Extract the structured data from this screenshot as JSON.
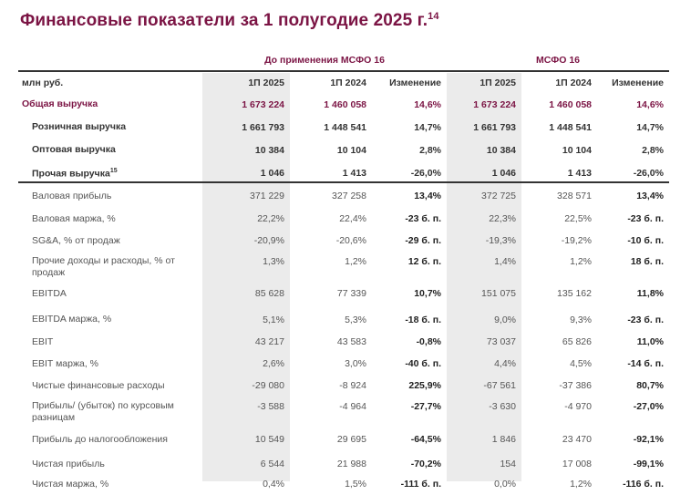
{
  "title": "Финансовые показатели за 1 полугодие 2025 г.",
  "title_footnote": "14",
  "groups": {
    "pre_ifrs16": "До применения МСФО 16",
    "ifrs16": "МСФО 16"
  },
  "colors": {
    "accent": "#7b1444",
    "shade": "#ebebeb"
  },
  "header": {
    "unit": "млн руб.",
    "cols": [
      "1П 2025",
      "1П 2024",
      "Изменение",
      "1П 2025",
      "1П 2024",
      "Изменение"
    ]
  },
  "rows": [
    {
      "label": "Общая выручка",
      "style": "total",
      "values": [
        "1 673 224",
        "1 460 058",
        "14,6%",
        "1 673 224",
        "1 460 058",
        "14,6%"
      ]
    },
    {
      "label": "Розничная выручка",
      "style": "up sub",
      "values": [
        "1 661 793",
        "1 448 541",
        "14,7%",
        "1 661 793",
        "1 448 541",
        "14,7%"
      ]
    },
    {
      "label": "Оптовая выручка",
      "style": "up sub",
      "values": [
        "10 384",
        "10 104",
        "2,8%",
        "10 384",
        "10 104",
        "2,8%"
      ]
    },
    {
      "label": "Прочая выручка",
      "footnote": "15",
      "style": "up sub",
      "values": [
        "1 046",
        "1 413",
        "-26,0%",
        "1 046",
        "1 413",
        "-26,0%"
      ]
    },
    {
      "label": "Валовая прибыль",
      "style": "low sub",
      "values": [
        "371 229",
        "327 258",
        "13,4%",
        "372 725",
        "328 571",
        "13,4%"
      ]
    },
    {
      "label": "Валовая маржа, %",
      "style": "low sub",
      "values": [
        "22,2%",
        "22,4%",
        "-23 б. п.",
        "22,3%",
        "22,5%",
        "-23 б. п."
      ]
    },
    {
      "label": "SG&A, % от продаж",
      "style": "low sub",
      "values": [
        "-20,9%",
        "-20,6%",
        "-29 б. п.",
        "-19,3%",
        "-19,2%",
        "-10 б. п."
      ]
    },
    {
      "label": "Прочие доходы и расходы, % от продаж",
      "style": "low sub two",
      "values": [
        "1,3%",
        "1,2%",
        "12 б. п.",
        "1,4%",
        "1,2%",
        "18 б. п."
      ]
    },
    {
      "label": "EBITDA",
      "style": "low sub",
      "values": [
        "85 628",
        "77 339",
        "10,7%",
        "151 075",
        "135 162",
        "11,8%"
      ]
    },
    {
      "label": "EBITDA маржа, %",
      "style": "low sub",
      "values": [
        "5,1%",
        "5,3%",
        "-18 б. п.",
        "9,0%",
        "9,3%",
        "-23 б. п."
      ]
    },
    {
      "label": "EBIT",
      "style": "low sub",
      "values": [
        "43 217",
        "43 583",
        "-0,8%",
        "73 037",
        "65 826",
        "11,0%"
      ]
    },
    {
      "label": "EBIT маржа, %",
      "style": "low sub",
      "values": [
        "2,6%",
        "3,0%",
        "-40 б. п.",
        "4,4%",
        "4,5%",
        "-14 б. п."
      ]
    },
    {
      "label": "Чистые финансовые расходы",
      "style": "low sub",
      "values": [
        "-29 080",
        "-8 924",
        "225,9%",
        "-67 561",
        "-37 386",
        "80,7%"
      ]
    },
    {
      "label": "Прибыль/ (убыток) по курсовым разницам",
      "style": "low sub two",
      "values": [
        "-3 588",
        "-4 964",
        "-27,7%",
        "-3 630",
        "-4 970",
        "-27,0%"
      ]
    },
    {
      "label": "Прибыль до налогообложения",
      "style": "low sub",
      "values": [
        "10 549",
        "29 695",
        "-64,5%",
        "1 846",
        "23 470",
        "-92,1%"
      ]
    },
    {
      "label": "Чистая прибыль",
      "style": "low sub",
      "values": [
        "6 544",
        "21 988",
        "-70,2%",
        "154",
        "17 008",
        "-99,1%"
      ]
    },
    {
      "label": "Чистая маржа, %",
      "style": "low sub",
      "values": [
        "0,4%",
        "1,5%",
        "-111 б. п.",
        "0,0%",
        "1,2%",
        "-116 б. п."
      ]
    }
  ]
}
